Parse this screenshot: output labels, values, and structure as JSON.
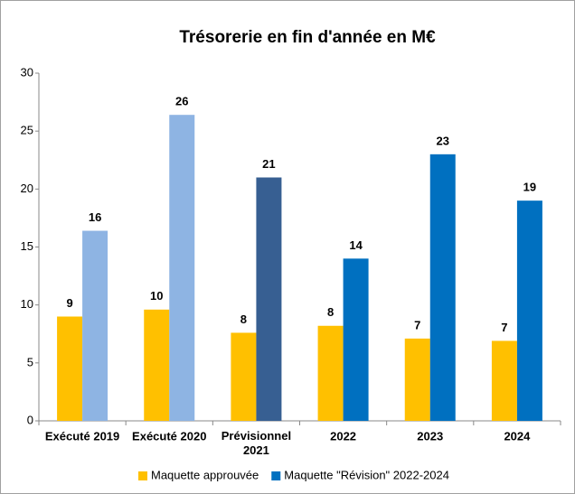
{
  "chart_data": {
    "type": "bar",
    "title": "Trésorerie en fin d'année en M€",
    "categories": [
      "Exécuté 2019",
      "Exécuté 2020",
      "Prévisionnel\n2021",
      "2022",
      "2023",
      "2024"
    ],
    "series": [
      {
        "name": "Maquette approuvée",
        "color": "#ffc000",
        "values": [
          9.0,
          9.6,
          7.6,
          8.2,
          7.1,
          6.9
        ],
        "value_labels": [
          "9",
          "10",
          "8",
          "8",
          "7",
          "7"
        ]
      },
      {
        "name": "Maquette \"Révision\" 2022-2024",
        "color": "#0070c0",
        "colors": [
          "#8eb4e3",
          "#8eb4e3",
          "#375f92",
          "#0070c0",
          "#0070c0",
          "#0070c0"
        ],
        "values": [
          16.4,
          26.4,
          21,
          14,
          23,
          19
        ],
        "value_labels": [
          "16",
          "26",
          "21",
          "14",
          "23",
          "19"
        ]
      }
    ],
    "ylim": [
      0,
      30
    ],
    "yticks": [
      0,
      5,
      10,
      15,
      20,
      25,
      30
    ],
    "grid": false,
    "legend": "bottom"
  }
}
